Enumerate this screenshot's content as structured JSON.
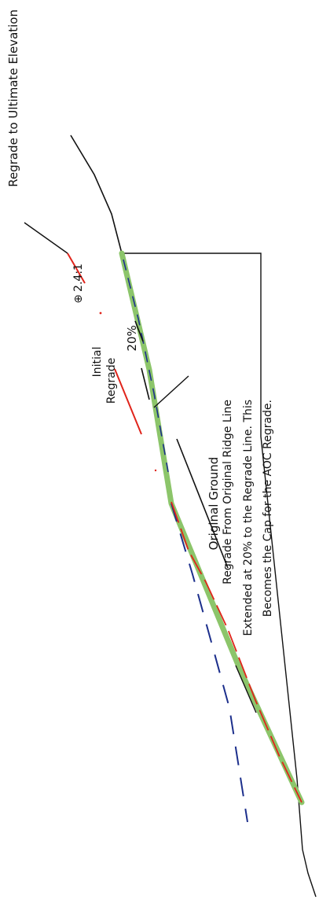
{
  "labels": {
    "regrade_to_ultimate": "Regrade to Ultimate Elevation",
    "slope_ratio": "2.4:1",
    "initial_regrade_line1": "Initial",
    "initial_regrade_line2": "Regrade",
    "percent": "20%",
    "ridge_note_line1": "Regrade From Original Ridge Line",
    "ridge_note_line2": "Extended at 20% to the Regrade Line.  This",
    "ridge_note_line3": "Becomes the Cap for the AOC Regrade.",
    "original_ground": "Original Ground"
  },
  "colors": {
    "black": "#111111",
    "red": "#e0241b",
    "green": "#8cc56a",
    "blue": "#1c2f8c",
    "background": "#ffffff"
  }
}
